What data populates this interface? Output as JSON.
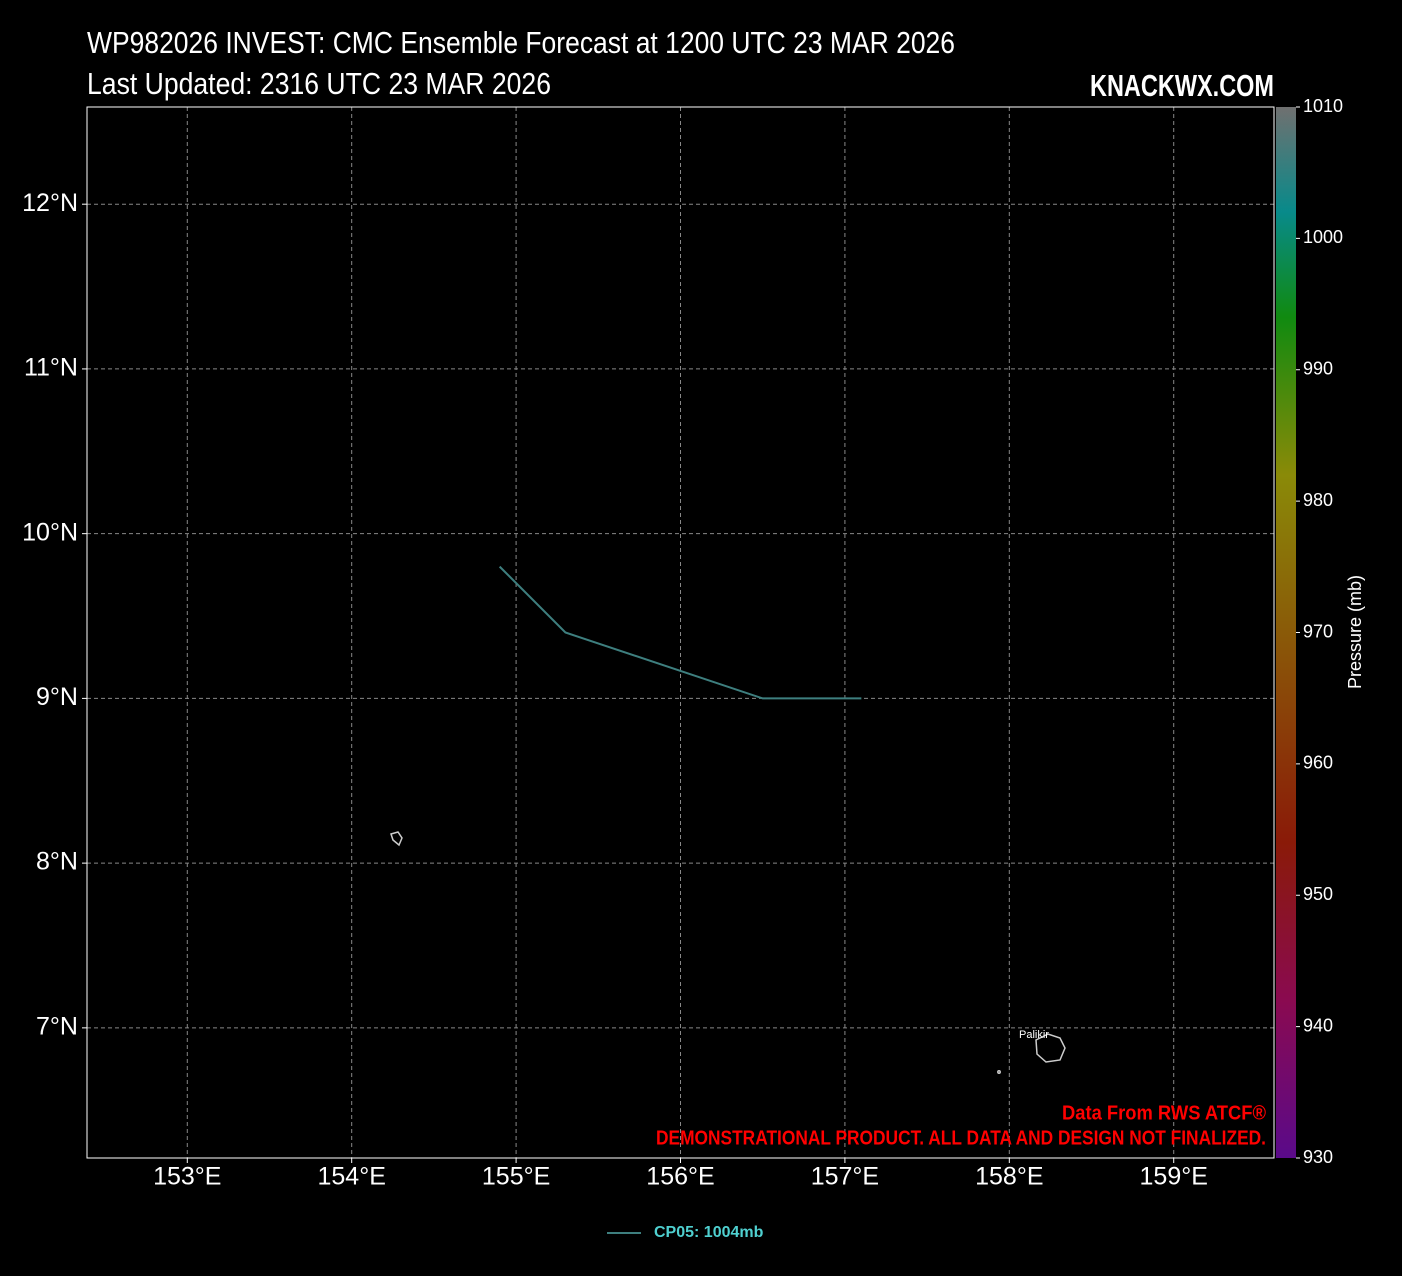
{
  "chart_data": {
    "type": "line",
    "title": "WP982026 INVEST: CMC Ensemble Forecast at 1200 UTC 23 MAR 2026",
    "subtitle": "Last Updated: 2316 UTC 23 MAR 2026",
    "brand": "KNACKWX.COM",
    "annotations": {
      "source": "Data From RWS ATCF®",
      "disclaimer": "DEMONSTRATIONAL PRODUCT. ALL DATA AND DESIGN NOT FINALIZED.",
      "place": "Palikir"
    },
    "x": [
      154.9,
      155.3,
      156.5,
      157.1
    ],
    "series": [
      {
        "name": "CP05: 1004mb",
        "color": "#3e7f7f",
        "legend_text_color": "#4fd0d0",
        "values": [
          9.8,
          9.4,
          9.0,
          9.0
        ]
      }
    ],
    "xlim": [
      152.39,
      159.61
    ],
    "ylim": [
      6.21,
      12.59
    ],
    "xticks": [
      {
        "value": 153,
        "label": "153°E"
      },
      {
        "value": 154,
        "label": "154°E"
      },
      {
        "value": 155,
        "label": "155°E"
      },
      {
        "value": 156,
        "label": "156°E"
      },
      {
        "value": 157,
        "label": "157°E"
      },
      {
        "value": 158,
        "label": "158°E"
      },
      {
        "value": 159,
        "label": "159°E"
      }
    ],
    "yticks": [
      {
        "value": 7,
        "label": "7°N"
      },
      {
        "value": 8,
        "label": "8°N"
      },
      {
        "value": 9,
        "label": "9°N"
      },
      {
        "value": 10,
        "label": "10°N"
      },
      {
        "value": 11,
        "label": "11°N"
      },
      {
        "value": 12,
        "label": "12°N"
      }
    ],
    "grid": true,
    "colorbar": {
      "label": "Pressure (mb)",
      "lim": [
        930,
        1010
      ],
      "ticks": [
        930,
        940,
        950,
        960,
        970,
        980,
        990,
        1000,
        1010
      ]
    }
  }
}
